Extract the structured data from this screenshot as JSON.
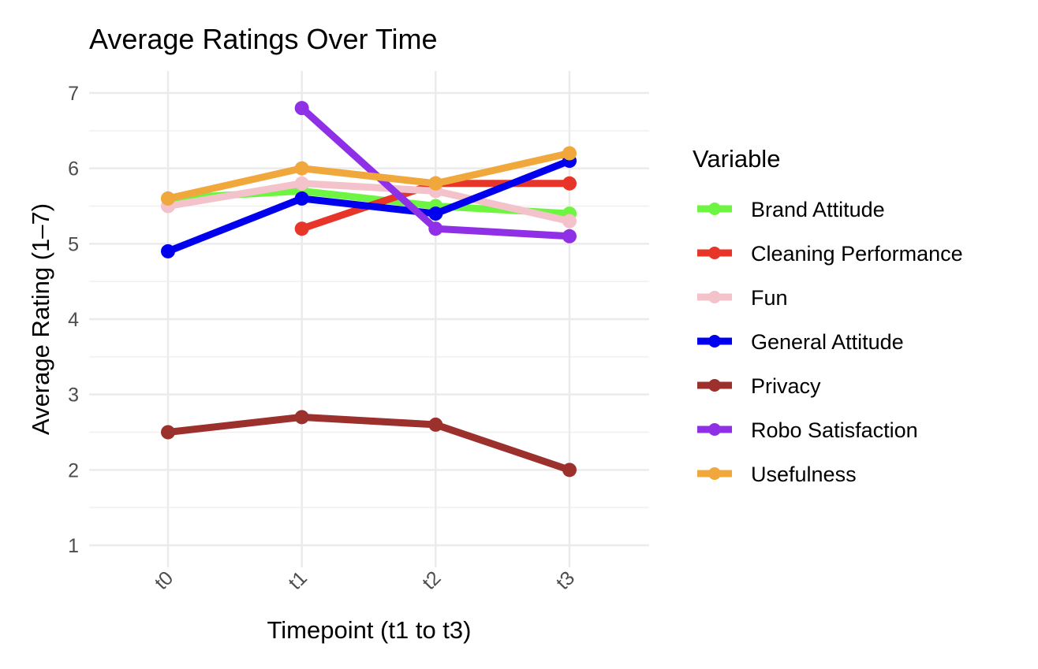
{
  "chart_data": {
    "type": "line",
    "title": "Average Ratings Over Time",
    "xlabel": "Timepoint (t1 to t3)",
    "ylabel": "Average Rating (1–7)",
    "categories": [
      "t0",
      "t1",
      "t2",
      "t3"
    ],
    "ylim": [
      1,
      7
    ],
    "yticks": [
      "1",
      "2",
      "3",
      "4",
      "5",
      "6",
      "7"
    ],
    "grid": true,
    "legend_title": "Variable",
    "legend_position": "right",
    "series": [
      {
        "name": "Brand Attitude",
        "color": "#6ef542",
        "values": [
          5.6,
          5.7,
          5.5,
          5.4
        ]
      },
      {
        "name": "Cleaning Performance",
        "color": "#e8352a",
        "values": [
          null,
          5.2,
          5.8,
          5.8
        ]
      },
      {
        "name": "Fun",
        "color": "#f4c2ca",
        "values": [
          5.5,
          5.8,
          5.7,
          5.3
        ]
      },
      {
        "name": "General Attitude",
        "color": "#0000ee",
        "values": [
          4.9,
          5.6,
          5.4,
          6.1
        ]
      },
      {
        "name": "Privacy",
        "color": "#9b302c",
        "values": [
          2.5,
          2.7,
          2.6,
          2.0
        ]
      },
      {
        "name": "Robo Satisfaction",
        "color": "#9030e6",
        "values": [
          null,
          6.8,
          5.2,
          5.1
        ]
      },
      {
        "name": "Usefulness",
        "color": "#f0a83c",
        "values": [
          5.6,
          6.0,
          5.8,
          6.2
        ]
      }
    ]
  }
}
